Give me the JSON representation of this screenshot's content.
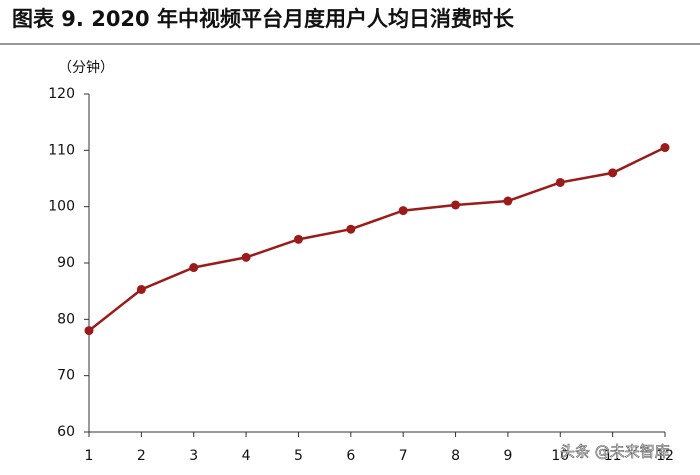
{
  "chart_data": {
    "type": "line",
    "title": "图表 9. 2020 年中视频平台月度用户人均日消费时长",
    "y_label": "（分钟）",
    "watermark": "头条 @未来智库",
    "x": [
      1,
      2,
      3,
      4,
      5,
      6,
      7,
      8,
      9,
      10,
      11,
      12
    ],
    "series": [
      {
        "name": "人均日消费时长",
        "color": "#9b1b1b",
        "values": [
          78,
          85.3,
          89.2,
          91,
          94.2,
          96,
          99.3,
          100.3,
          101,
          104.3,
          106,
          110.5
        ]
      }
    ],
    "xlim": [
      1,
      12
    ],
    "xticks": [
      1,
      2,
      3,
      4,
      5,
      6,
      7,
      8,
      9,
      10,
      11,
      12
    ],
    "ylim": [
      60,
      120
    ],
    "yticks": [
      60,
      70,
      80,
      90,
      100,
      110,
      120
    ],
    "grid": false,
    "markers": true
  }
}
